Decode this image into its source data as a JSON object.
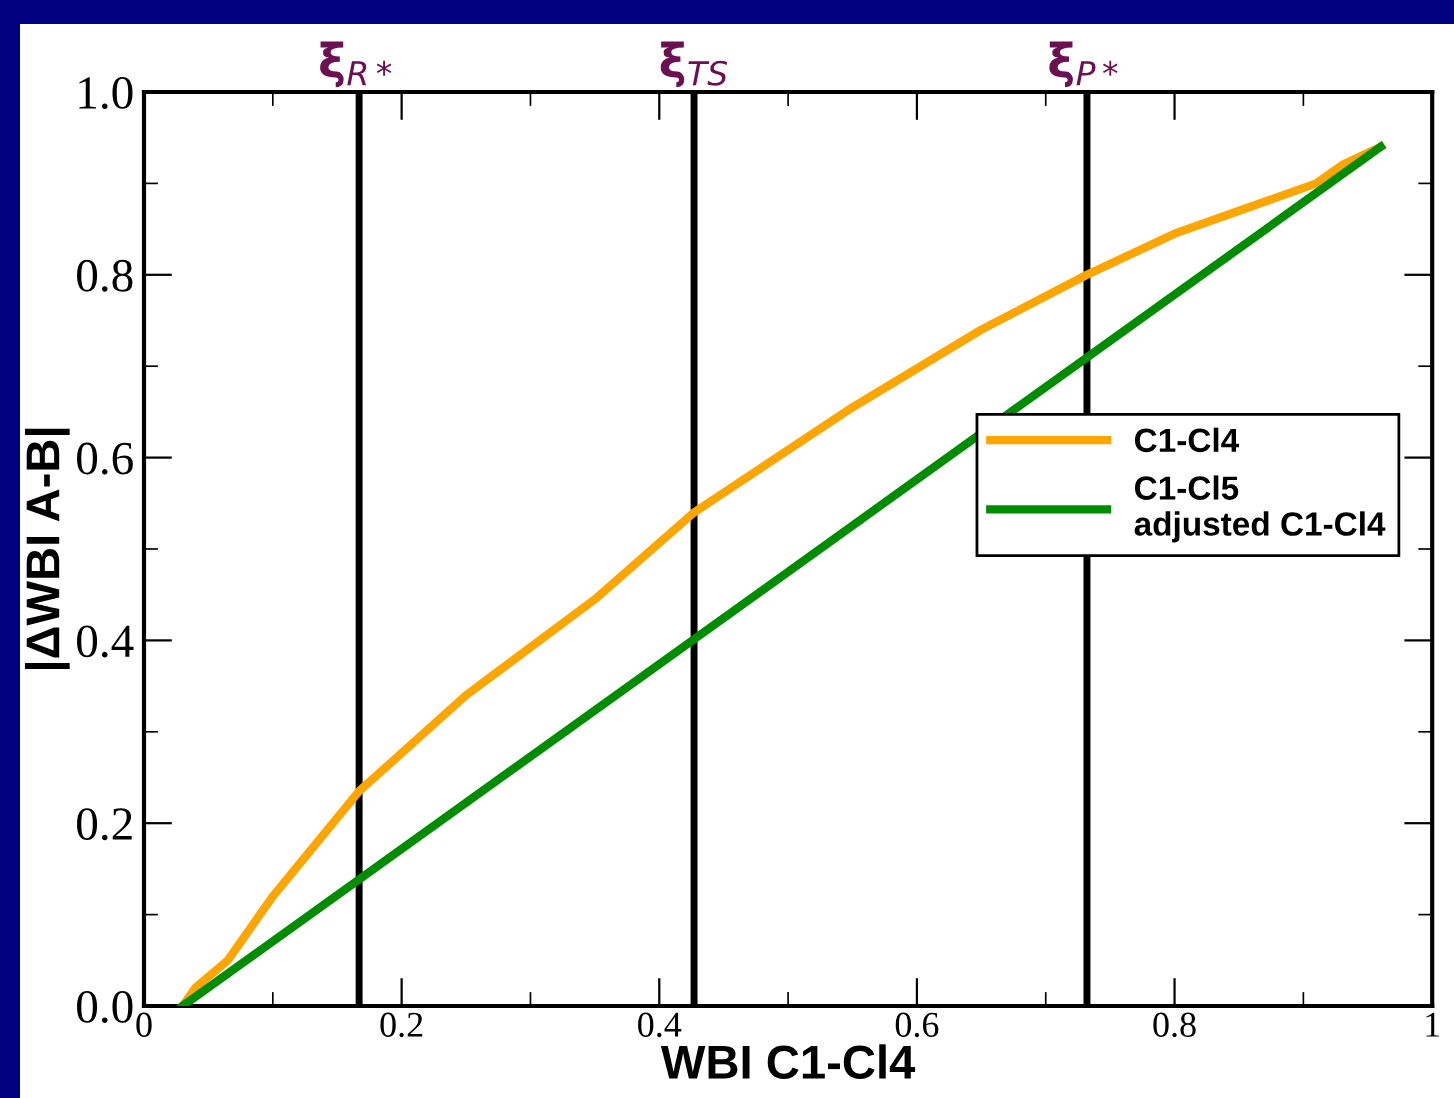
{
  "chart_data": {
    "type": "line",
    "xlabel": "WBI C1-Cl4",
    "ylabel": "|ΔWBI A-B|",
    "xlim": [
      0,
      1
    ],
    "ylim": [
      0,
      1.0
    ],
    "xticks": [
      0,
      0.2,
      0.4,
      0.6,
      0.8,
      1
    ],
    "yticks": [
      {
        "value": 0,
        "label": "0.0"
      },
      0.2,
      0.4,
      0.6,
      0.8,
      {
        "value": 1,
        "label": "1.0"
      }
    ],
    "grid": false,
    "legend": "right",
    "marker": "none",
    "line_style": "solid",
    "series": [
      {
        "name": "C1-Cl4",
        "color": "#ffa500",
        "x": [
          0.03,
          0.04,
          0.065,
          0.1,
          0.167,
          0.25,
          0.35,
          0.427,
          0.55,
          0.65,
          0.732,
          0.8,
          0.86,
          0.91,
          0.93,
          0.96
        ],
        "values": [
          0,
          0.02,
          0.05,
          0.12,
          0.235,
          0.34,
          0.445,
          0.54,
          0.655,
          0.74,
          0.8,
          0.845,
          0.875,
          0.9,
          0.92,
          0.94
        ]
      },
      {
        "name": "C1-Cl5\nadjusted C1-Cl4",
        "color": "#008c00",
        "x": [
          0.03,
          0.96
        ],
        "values": [
          0,
          0.94
        ]
      }
    ],
    "ref_lines": [
      {
        "axis": "x",
        "value": 0.167,
        "label": "ξ$_{R*}$",
        "color": "#000000"
      },
      {
        "axis": "x",
        "value": 0.427,
        "label": "ξ$_{TS}$",
        "color": "#000000"
      },
      {
        "axis": "x",
        "value": 0.732,
        "label": "ξ$_{P*}$",
        "color": "#000000"
      }
    ]
  }
}
